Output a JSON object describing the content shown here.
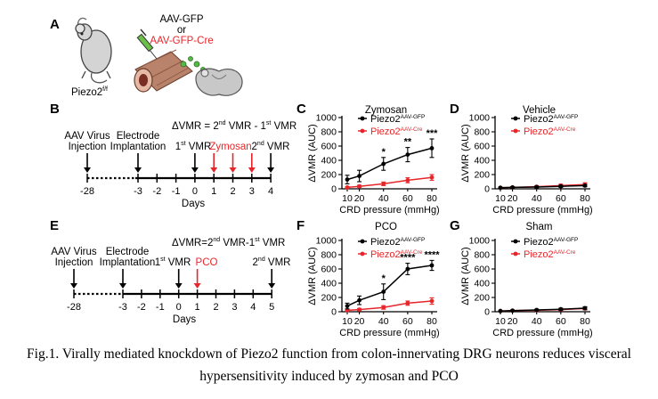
{
  "panels": {
    "A": {
      "letter": "A",
      "mouse_label_base": "Piezo2",
      "mouse_label_sup": "f/f",
      "virus_line1": "AAV-GFP",
      "virus_line2": "or",
      "virus_line3": "AAV-GFP-Cre"
    },
    "B": {
      "letter": "B",
      "formula": {
        "p1": "ΔVMR = 2",
        "s1": "nd",
        "p2": " VMR - 1",
        "s2": "st",
        "p3": " VMR"
      },
      "events": [
        {
          "line1": "AAV Virus",
          "line2": "Injection"
        },
        {
          "line1": "Electrode",
          "line2": "Implantation"
        }
      ],
      "first_vmr": {
        "p": "1",
        "s": "st",
        "rest": " VMR"
      },
      "treatment": "Zymosan",
      "second_vmr": {
        "p": "2",
        "s": "nd",
        "rest": " VMR"
      },
      "ticks": [
        "-28",
        "-3",
        "-2",
        "-1",
        "0",
        "1",
        "2",
        "3",
        "4"
      ],
      "xlabel": "Days"
    },
    "E": {
      "letter": "E",
      "formula": {
        "p1": "ΔVMR=2",
        "s1": "nd",
        "p2": " VMR-1",
        "s2": "st",
        "p3": " VMR"
      },
      "events": [
        {
          "line1": "AAV Virus",
          "line2": "Injection"
        },
        {
          "line1": "Electrode",
          "line2": "Implantation"
        }
      ],
      "first_vmr": {
        "p": "1",
        "s": "st",
        "rest": " VMR"
      },
      "treatment": "PCO",
      "second_vmr": {
        "p": "2",
        "s": "nd",
        "rest": " VMR"
      },
      "ticks": [
        "-28",
        "-3",
        "-2",
        "-1",
        "0",
        "1",
        "2",
        "3",
        "4",
        "5"
      ],
      "xlabel": "Days"
    }
  },
  "legend": {
    "gfp": {
      "base": "Piezo2",
      "sup": "AAV-GFP"
    },
    "cre": {
      "base": "Piezo2",
      "sup": "AAV-Cre"
    }
  },
  "colors": {
    "gfp": "#000000",
    "cre": "#e8262a",
    "treatment": "#e8262a"
  },
  "chart_data": [
    {
      "panel": "C",
      "type": "line",
      "title": "Zymosan",
      "xlabel": "CRD pressure (mmHg)",
      "ylabel": "ΔVMR (AUC)",
      "x": [
        10,
        20,
        40,
        60,
        80
      ],
      "ylim": [
        0,
        1000
      ],
      "yticks": [
        0,
        200,
        400,
        600,
        800,
        1000
      ],
      "series": [
        {
          "key": "gfp",
          "values": [
            130,
            180,
            350,
            480,
            570
          ],
          "errors": [
            60,
            80,
            90,
            100,
            130
          ]
        },
        {
          "key": "cre",
          "values": [
            20,
            35,
            70,
            120,
            160
          ],
          "errors": [
            10,
            15,
            25,
            35,
            40
          ]
        }
      ],
      "annotations": [
        {
          "x": 40,
          "text": "*"
        },
        {
          "x": 60,
          "text": "**"
        },
        {
          "x": 80,
          "text": "***"
        }
      ]
    },
    {
      "panel": "D",
      "type": "line",
      "title": "Vehicle",
      "xlabel": "CRD pressure (mmHg)",
      "ylabel": "ΔVMR (AUC)",
      "x": [
        10,
        20,
        40,
        60,
        80
      ],
      "ylim": [
        0,
        1000
      ],
      "yticks": [
        0,
        200,
        400,
        600,
        800,
        1000
      ],
      "series": [
        {
          "key": "gfp",
          "values": [
            15,
            20,
            25,
            35,
            45
          ],
          "errors": [
            8,
            10,
            10,
            15,
            15
          ]
        },
        {
          "key": "cre",
          "values": [
            15,
            20,
            30,
            45,
            60
          ],
          "errors": [
            8,
            10,
            12,
            20,
            25
          ]
        }
      ],
      "annotations": []
    },
    {
      "panel": "F",
      "type": "line",
      "title": "PCO",
      "xlabel": "CRD pressure (mmHg)",
      "ylabel": "ΔVMR (AUC)",
      "x": [
        10,
        20,
        40,
        60,
        80
      ],
      "ylim": [
        0,
        1000
      ],
      "yticks": [
        0,
        200,
        400,
        600,
        800,
        1000
      ],
      "series": [
        {
          "key": "gfp",
          "values": [
            80,
            160,
            280,
            600,
            650
          ],
          "errors": [
            40,
            60,
            110,
            80,
            70
          ]
        },
        {
          "key": "cre",
          "values": [
            20,
            30,
            60,
            120,
            150
          ],
          "errors": [
            10,
            15,
            25,
            30,
            45
          ]
        }
      ],
      "annotations": [
        {
          "x": 40,
          "text": "*"
        },
        {
          "x": 60,
          "text": "****"
        },
        {
          "x": 80,
          "text": "****"
        }
      ]
    },
    {
      "panel": "G",
      "type": "line",
      "title": "Sham",
      "xlabel": "CRD pressure (mmHg)",
      "ylabel": "ΔVMR (AUC)",
      "x": [
        10,
        20,
        40,
        60,
        80
      ],
      "ylim": [
        0,
        1000
      ],
      "yticks": [
        0,
        200,
        400,
        600,
        800,
        1000
      ],
      "series": [
        {
          "key": "gfp",
          "values": [
            10,
            15,
            25,
            35,
            50
          ],
          "errors": [
            5,
            8,
            10,
            15,
            20
          ]
        },
        {
          "key": "cre",
          "values": [
            10,
            15,
            20,
            30,
            45
          ],
          "errors": [
            5,
            8,
            10,
            15,
            20
          ]
        }
      ],
      "annotations": []
    }
  ],
  "caption": {
    "line1": "Fig.1. Virally mediated knockdown of Piezo2 function from colon-innervating DRG neurons reduces visceral",
    "line2": "hypersensitivity induced by zymosan and PCO"
  }
}
